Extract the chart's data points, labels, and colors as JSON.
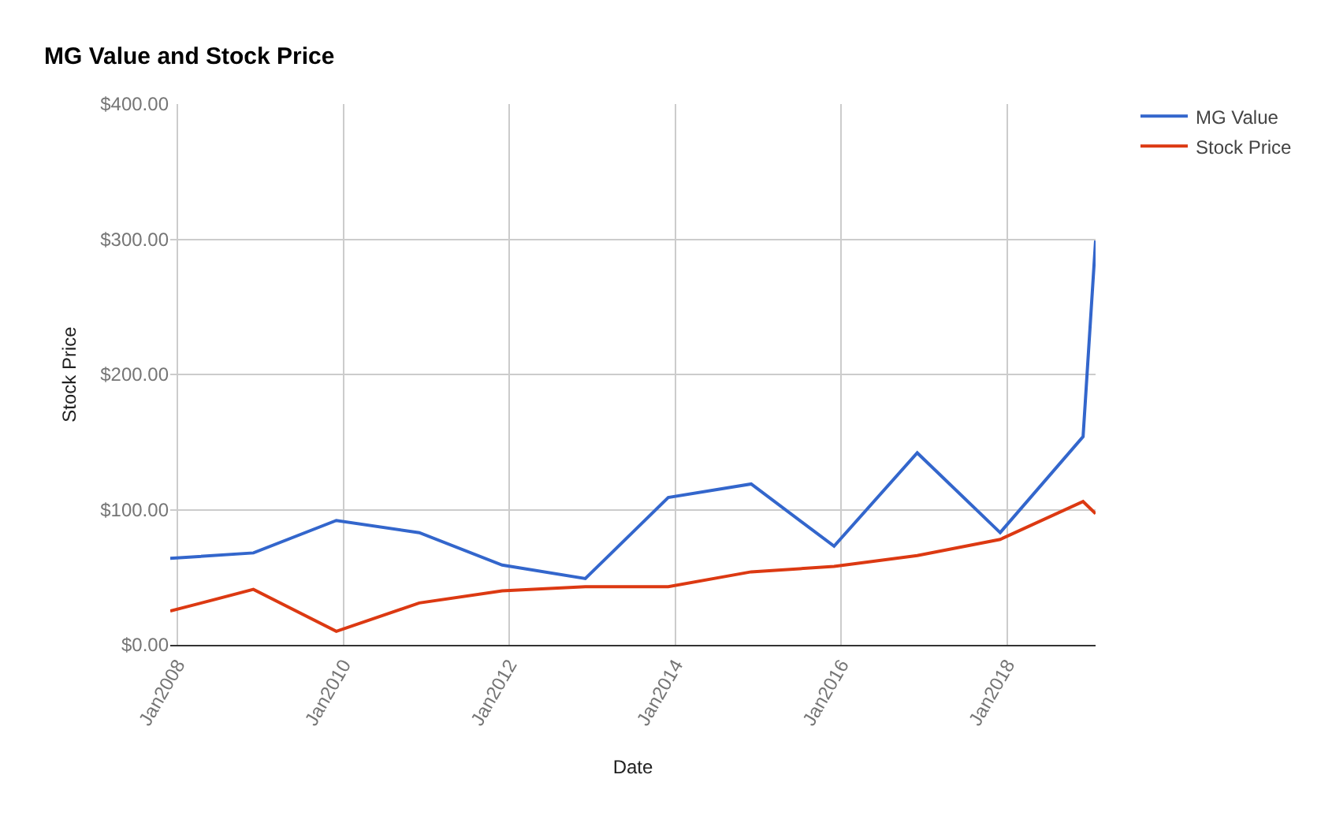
{
  "chart_data": {
    "type": "line",
    "title": "MG Value and Stock Price",
    "xlabel": "Date",
    "ylabel": "Stock Price",
    "x": [
      "2007-12-01",
      "2008-12-01",
      "2009-12-01",
      "2010-12-01",
      "2011-12-01",
      "2012-12-01",
      "2013-12-01",
      "2014-12-01",
      "2015-12-01",
      "2016-12-01",
      "2017-12-01",
      "2018-12-01",
      "2019-01-25"
    ],
    "series": [
      {
        "name": "MG Value",
        "color": "#3366cc",
        "values": [
          64,
          68,
          92,
          83,
          59,
          49,
          109,
          119,
          73,
          142,
          83,
          154,
          299
        ]
      },
      {
        "name": "Stock Price",
        "color": "#dc3912",
        "values": [
          25,
          41,
          10,
          31,
          40,
          43,
          43,
          54,
          58,
          66,
          78,
          106,
          97
        ]
      }
    ],
    "xlim": [
      "2007-12-01",
      "2019-01-25"
    ],
    "xticks": [
      {
        "value": "2008-01-01",
        "label": "Jan2008"
      },
      {
        "value": "2010-01-01",
        "label": "Jan2010"
      },
      {
        "value": "2012-01-01",
        "label": "Jan2012"
      },
      {
        "value": "2014-01-01",
        "label": "Jan2014"
      },
      {
        "value": "2016-01-01",
        "label": "Jan2016"
      },
      {
        "value": "2018-01-01",
        "label": "Jan2018"
      }
    ],
    "ylim": [
      0,
      400
    ],
    "yticks": [
      {
        "value": 0,
        "label": "$0.00"
      },
      {
        "value": 100,
        "label": "$100.00"
      },
      {
        "value": 200,
        "label": "$200.00"
      },
      {
        "value": 300,
        "label": "$300.00"
      },
      {
        "value": 400,
        "label": "$400.00"
      }
    ],
    "grid": true,
    "legend": "top right",
    "line_style": "solid"
  }
}
